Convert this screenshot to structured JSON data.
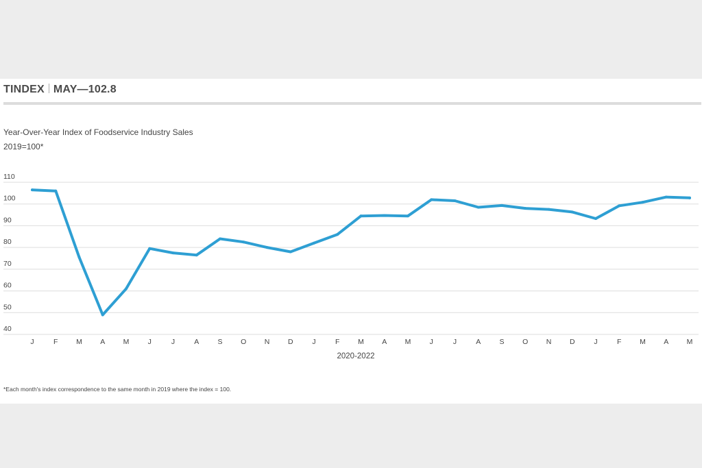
{
  "header": {
    "brand": "TINDEX",
    "highlight": "MAY—102.8"
  },
  "subtitle": "Year-Over-Year Index of Foodservice Industry Sales",
  "unit_note": "2019=100*",
  "footnote": "*Each month's index correspondence to the same month in 2019 where the index = 100.",
  "colors": {
    "line": "#2e9fd3",
    "grid": "#dddddd",
    "background": "#ededed"
  },
  "chart_data": {
    "type": "line",
    "xlabel": "2020-2022",
    "ylabel": "",
    "ylim": [
      40,
      110
    ],
    "yticks": [
      40,
      50,
      60,
      70,
      80,
      90,
      100,
      110
    ],
    "grid": "horizontal",
    "categories": [
      "J",
      "F",
      "M",
      "A",
      "M",
      "J",
      "J",
      "A",
      "S",
      "O",
      "N",
      "D",
      "J",
      "F",
      "M",
      "A",
      "M",
      "J",
      "J",
      "A",
      "S",
      "O",
      "N",
      "D",
      "J",
      "F",
      "M",
      "A",
      "M"
    ],
    "series": [
      {
        "values": [
          106.5,
          106,
          75.5,
          49,
          61,
          79.5,
          77.5,
          76.5,
          84,
          82.5,
          80,
          78,
          82,
          86,
          94.5,
          94.7,
          94.5,
          102,
          101.5,
          98.5,
          99.3,
          98,
          97.5,
          96.3,
          93.3,
          99.2,
          100.8,
          103.2,
          102.8
        ]
      }
    ]
  }
}
